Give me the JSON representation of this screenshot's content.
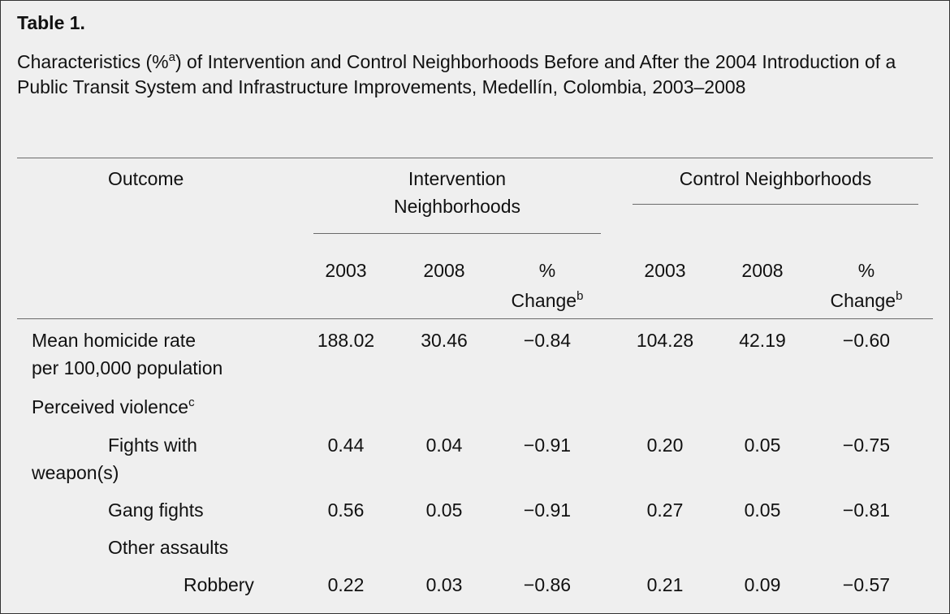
{
  "table": {
    "label": "Table 1.",
    "caption": {
      "prefix": "Characteristics (%",
      "sup": "a",
      "suffix": ") of Intervention and Control Neighborhoods Before and After the 2004 Introduction of a Public Transit System and Infrastructure Improvements, Medellín, Colombia, 2003–2008"
    },
    "headers": {
      "outcome": "Outcome",
      "intervention_line1": "Intervention",
      "intervention_line2": "Neighborhoods",
      "control": "Control Neighborhoods",
      "year_2003": "2003",
      "year_2008": "2008",
      "pct": "%",
      "change": "Change",
      "change_sup": "b"
    },
    "rows": [
      {
        "line1": "Mean homicide rate",
        "line2": "per 100,000 population",
        "values": [
          "188.02",
          "30.46",
          "−0.84",
          "104.28",
          "42.19",
          "−0.60"
        ]
      },
      {
        "label": "Perceived violence",
        "sup": "c"
      },
      {
        "line1": "Fights with",
        "line2": "weapon(s)",
        "values": [
          "0.44",
          "0.04",
          "−0.91",
          "0.20",
          "0.05",
          "−0.75"
        ]
      },
      {
        "label": "Gang fights",
        "values": [
          "0.56",
          "0.05",
          "−0.91",
          "0.27",
          "0.05",
          "−0.81"
        ]
      },
      {
        "label": "Other assaults"
      },
      {
        "label": "Robbery",
        "values": [
          "0.22",
          "0.03",
          "−0.86",
          "0.21",
          "0.09",
          "−0.57"
        ]
      }
    ]
  }
}
